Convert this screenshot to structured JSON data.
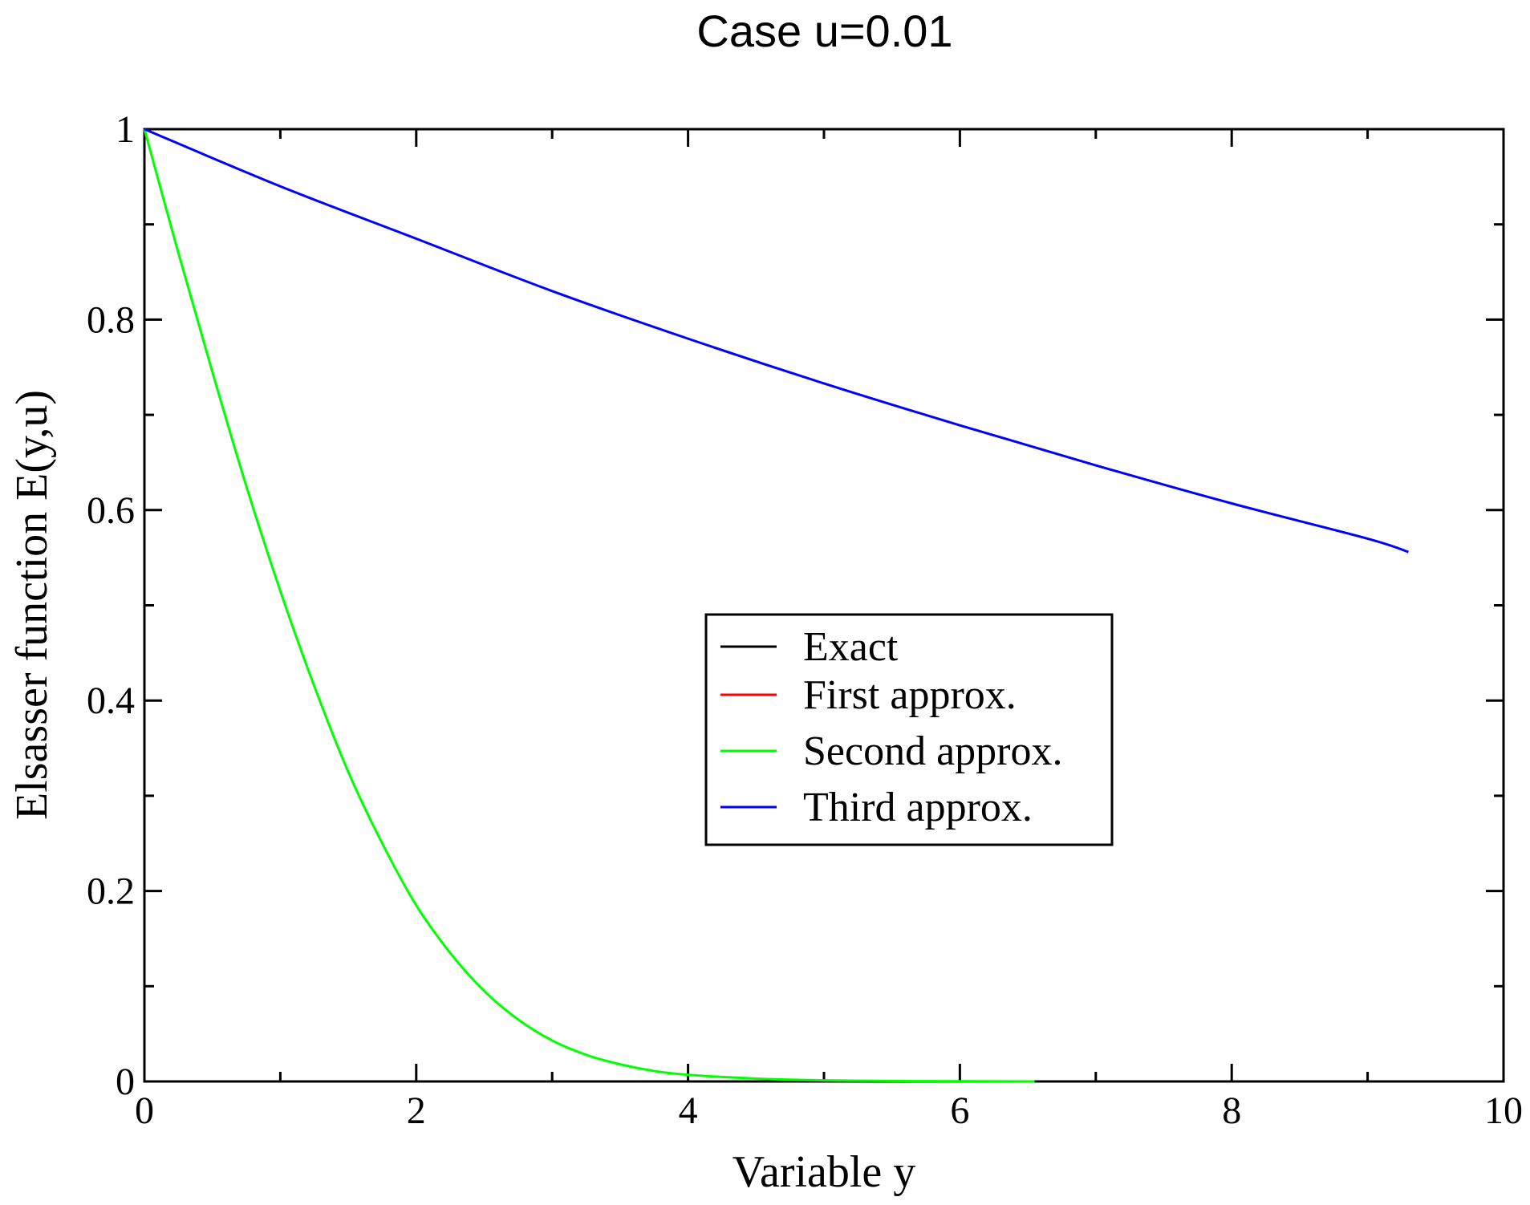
{
  "chart_data": {
    "type": "line",
    "title": "Case u=0.01",
    "xlabel": "Variable y",
    "ylabel": "Elsasser function E(y,u)",
    "xlim": [
      0,
      10
    ],
    "ylim": [
      0,
      1
    ],
    "x_ticks": [
      "0",
      "2",
      "4",
      "6",
      "8",
      "10"
    ],
    "y_ticks": [
      "0",
      "0.2",
      "0.4",
      "0.6",
      "0.8",
      "1"
    ],
    "grid": false,
    "legend_position": "center-right",
    "series": [
      {
        "name": "Exact",
        "color": "#000000",
        "x": [],
        "y": []
      },
      {
        "name": "First approx.",
        "color": "#ff0000",
        "x": [],
        "y": []
      },
      {
        "name": "Second approx.",
        "color": "#00ff00",
        "x": [
          0,
          0.25,
          0.5,
          0.75,
          1.0,
          1.25,
          1.5,
          1.75,
          2.0,
          2.25,
          2.5,
          2.75,
          3.0,
          3.25,
          3.5,
          3.75,
          4.0,
          4.5,
          5.0,
          5.5,
          6.0,
          6.55
        ],
        "y": [
          1.0,
          0.87,
          0.745,
          0.625,
          0.515,
          0.415,
          0.325,
          0.25,
          0.185,
          0.135,
          0.095,
          0.065,
          0.043,
          0.028,
          0.018,
          0.011,
          0.007,
          0.003,
          0.0012,
          0.0005,
          0.0002,
          0.0
        ]
      },
      {
        "name": "Third approx.",
        "color": "#0000ff",
        "x": [
          0,
          1,
          2,
          3,
          4,
          5,
          6,
          7,
          8,
          9,
          9.3
        ],
        "y": [
          1.0,
          0.94,
          0.885,
          0.83,
          0.78,
          0.733,
          0.689,
          0.647,
          0.607,
          0.57,
          0.556
        ]
      }
    ]
  }
}
